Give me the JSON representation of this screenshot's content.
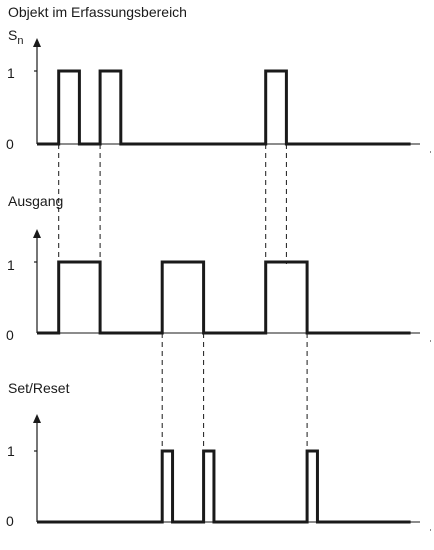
{
  "panels": [
    {
      "key": "input",
      "title": "Objekt im Erfassungsbereich",
      "symbol": "S",
      "symbol_sub": "n",
      "high_label": "1",
      "low_label": "0",
      "pulses": [
        [
          1,
          2
        ],
        [
          3,
          4
        ],
        [
          11,
          12
        ]
      ]
    },
    {
      "key": "output",
      "title": "Ausgang",
      "symbol": "",
      "symbol_sub": "",
      "high_label": "1",
      "low_label": "0",
      "pulses": [
        [
          1,
          3
        ],
        [
          6,
          8
        ],
        [
          11,
          13
        ]
      ]
    },
    {
      "key": "setreset",
      "title": "Set/Reset",
      "symbol": "",
      "symbol_sub": "",
      "high_label": "1",
      "low_label": "0",
      "pulses": [
        [
          6,
          6.5
        ],
        [
          8,
          8.5
        ],
        [
          13,
          13.5
        ]
      ]
    }
  ],
  "connectors": [
    {
      "t": 1,
      "from": "input",
      "to": "output"
    },
    {
      "t": 3,
      "from": "input",
      "to": "output"
    },
    {
      "t": 11,
      "from": "input",
      "to": "output"
    },
    {
      "t": 12,
      "from": "input",
      "to": "output"
    },
    {
      "t": 6,
      "from": "output",
      "to": "setreset"
    },
    {
      "t": 8,
      "from": "output",
      "to": "setreset"
    },
    {
      "t": 13,
      "from": "output",
      "to": "setreset"
    }
  ]
}
